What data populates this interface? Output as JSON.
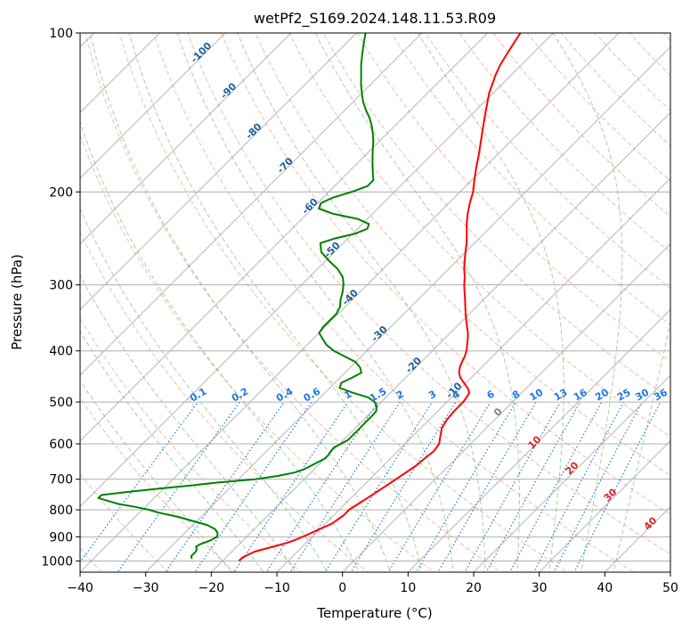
{
  "chart_data": {
    "type": "line",
    "subtype": "skew-t log-p diagram",
    "title": "wetPf2_S169.2024.148.11.53.R09",
    "xlabel": "Temperature (°C)",
    "ylabel": "Pressure (hPa)",
    "xlim": [
      -40,
      50
    ],
    "ylim": [
      1050,
      100
    ],
    "y_scale": "log",
    "grid": true,
    "x_ticks": [
      -40,
      -30,
      -20,
      -10,
      0,
      10,
      20,
      30,
      40,
      50
    ],
    "y_ticks": [
      100,
      200,
      300,
      400,
      500,
      600,
      700,
      800,
      900,
      1000
    ],
    "colors": {
      "temperature": "#ff0000",
      "dewpoint": "#008000",
      "isotherm": "#999999",
      "dry_adiabat": "#f4a582",
      "moist_adiabat": "#7fbf7b",
      "mixing_ratio": "#1f77e4",
      "isotherm_label": "#1f5f99",
      "moist_label": "#d62728",
      "grid": "#b0b0b0"
    },
    "series": [
      {
        "key": "temperature",
        "p": [
          1000,
          985,
          960,
          940,
          925,
          910,
          890,
          870,
          850,
          820,
          800,
          780,
          760,
          740,
          720,
          700,
          680,
          660,
          640,
          620,
          600,
          580,
          560,
          540,
          520,
          500,
          490,
          480,
          470,
          460,
          450,
          440,
          430,
          420,
          410,
          400,
          390,
          380,
          370,
          360,
          350,
          340,
          330,
          320,
          310,
          300,
          290,
          280,
          270,
          260,
          250,
          240,
          230,
          220,
          210,
          200,
          190,
          180,
          170,
          160,
          150,
          140,
          130,
          120,
          115,
          110,
          105,
          100
        ],
        "t": [
          -17.5,
          -17.5,
          -16.5,
          -14.5,
          -13.0,
          -12.0,
          -11.0,
          -10.0,
          -9.0,
          -8.5,
          -8.5,
          -8.0,
          -7.5,
          -7.0,
          -6.5,
          -6.0,
          -5.5,
          -5.0,
          -4.8,
          -4.5,
          -4.8,
          -5.8,
          -6.8,
          -7.3,
          -7.5,
          -7.5,
          -7.7,
          -8.0,
          -9.0,
          -10.3,
          -11.6,
          -12.6,
          -13.3,
          -13.8,
          -14.2,
          -14.8,
          -15.6,
          -16.4,
          -17.3,
          -18.4,
          -19.5,
          -20.6,
          -21.7,
          -22.8,
          -24.0,
          -25.2,
          -26.3,
          -27.6,
          -28.8,
          -30.0,
          -31.2,
          -32.6,
          -34.1,
          -35.5,
          -36.8,
          -38.0,
          -39.6,
          -41.2,
          -42.8,
          -44.6,
          -46.5,
          -48.5,
          -50.6,
          -52.4,
          -53.2,
          -53.8,
          -54.4,
          -55.0
        ]
      },
      {
        "key": "dewpoint",
        "p": [
          990,
          980,
          970,
          960,
          950,
          940,
          930,
          915,
          900,
          885,
          870,
          855,
          840,
          825,
          810,
          800,
          790,
          780,
          770,
          760,
          750,
          740,
          730,
          720,
          710,
          700,
          690,
          680,
          670,
          660,
          650,
          640,
          630,
          620,
          610,
          600,
          590,
          580,
          570,
          560,
          550,
          540,
          530,
          520,
          510,
          500,
          490,
          480,
          470,
          460,
          450,
          440,
          430,
          420,
          410,
          400,
          390,
          380,
          370,
          360,
          350,
          340,
          330,
          320,
          310,
          300,
          290,
          280,
          270,
          260,
          250,
          245,
          240,
          235,
          230,
          225,
          220,
          215,
          210,
          205,
          200,
          195,
          190,
          185,
          180,
          175,
          170,
          165,
          160,
          155,
          150,
          145,
          140,
          135,
          130,
          125,
          120,
          115,
          110,
          105,
          100
        ],
        "t": [
          -25.0,
          -25.5,
          -25.5,
          -25.5,
          -25.7,
          -26.2,
          -26.0,
          -25.0,
          -24.5,
          -25.0,
          -26.0,
          -27.8,
          -30.6,
          -33.5,
          -37.1,
          -39.0,
          -41.5,
          -44.5,
          -46.5,
          -48.5,
          -48.5,
          -45.0,
          -41.0,
          -36.5,
          -32.5,
          -27.5,
          -24.5,
          -22.5,
          -21.5,
          -21.0,
          -20.5,
          -20.0,
          -20.0,
          -20.2,
          -20.3,
          -19.8,
          -19.3,
          -19.3,
          -19.3,
          -19.3,
          -19.3,
          -19.3,
          -19.3,
          -19.4,
          -20.0,
          -21.0,
          -22.7,
          -25.8,
          -28.5,
          -29.0,
          -28.2,
          -27.5,
          -28.5,
          -30.0,
          -32.5,
          -35.0,
          -37.0,
          -38.5,
          -40.0,
          -40.3,
          -40.3,
          -40.3,
          -40.8,
          -41.8,
          -42.6,
          -43.6,
          -44.9,
          -46.9,
          -49.5,
          -52.0,
          -53.5,
          -52.0,
          -49.7,
          -48.5,
          -49.0,
          -51.5,
          -56.0,
          -59.0,
          -59.5,
          -58.5,
          -56.5,
          -55.0,
          -55.0,
          -56.0,
          -57.0,
          -58.0,
          -59.0,
          -60.0,
          -61.0,
          -62.2,
          -63.5,
          -65.0,
          -66.8,
          -68.5,
          -70.0,
          -71.5,
          -72.9,
          -74.4,
          -75.8,
          -77.2,
          -78.6
        ]
      }
    ],
    "reference_lines": {
      "isotherms_c": [
        -150,
        -140,
        -130,
        -120,
        -110,
        -100,
        -90,
        -80,
        -70,
        -60,
        -50,
        -40,
        -30,
        -20,
        -10,
        0,
        10,
        20,
        30,
        40,
        50
      ],
      "dry_adiabats_theta_c": [
        -40,
        -30,
        -20,
        -10,
        0,
        10,
        20,
        30,
        40,
        50,
        60,
        70,
        80,
        90,
        100,
        110,
        120,
        130,
        140,
        150,
        160,
        170,
        180,
        190,
        200,
        210
      ],
      "moist_adiabats_tw_c": [
        -20,
        -15,
        -10,
        -5,
        0,
        5,
        10,
        15,
        20,
        25,
        30,
        35,
        40
      ],
      "mixing_ratio_gkg": [
        0.1,
        0.2,
        0.4,
        0.6,
        1,
        1.5,
        2,
        3,
        4,
        6,
        8,
        10,
        13,
        16,
        20,
        25,
        30,
        36
      ]
    },
    "isotherm_labels": [
      {
        "text": "-100",
        "temp": -100
      },
      {
        "text": "-90",
        "temp": -90
      },
      {
        "text": "-80",
        "temp": -80
      },
      {
        "text": "-70",
        "temp": -70
      },
      {
        "text": "-60",
        "temp": -60
      },
      {
        "text": "-50",
        "temp": -50
      },
      {
        "text": "-40",
        "temp": -40
      },
      {
        "text": "-30",
        "temp": -30
      },
      {
        "text": "-20",
        "temp": -20
      },
      {
        "text": "-10",
        "temp": -10
      }
    ],
    "mixing_ratio_labels": [
      "0.1",
      "0.2",
      "0.4",
      "0.6",
      "1",
      "1.5",
      "2",
      "3",
      "4",
      "6",
      "8",
      "10",
      "13",
      "16",
      "20",
      "25",
      "30",
      "36"
    ],
    "moist_adiabat_labels": [
      {
        "text": "0",
        "color": "gray"
      },
      {
        "text": "10",
        "color": "red"
      },
      {
        "text": "20",
        "color": "red"
      },
      {
        "text": "30",
        "color": "red"
      },
      {
        "text": "40",
        "color": "red"
      }
    ]
  }
}
